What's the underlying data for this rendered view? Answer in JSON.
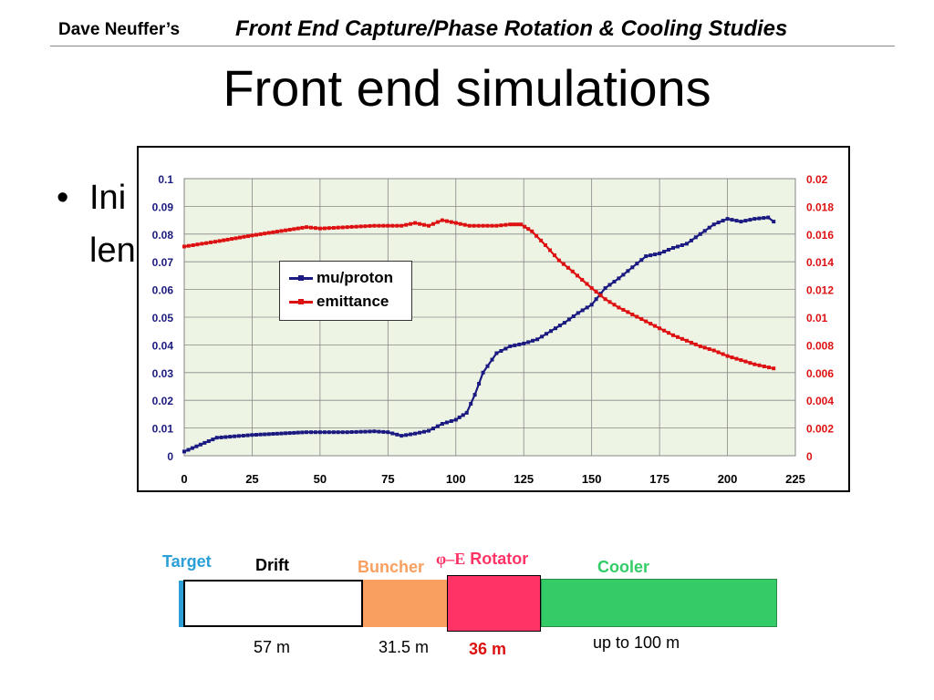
{
  "header": {
    "author": "Dave Neuffer’s",
    "subtitle": "Front End Capture/Phase Rotation & Cooling Studies"
  },
  "slide": {
    "title": "Front end simulations",
    "bullet_symbol": "•",
    "bullet_line1": "Ini",
    "bullet_line2": "len"
  },
  "legend": {
    "series1": "mu/proton",
    "series2": "emittance"
  },
  "chart_data": {
    "type": "line",
    "title": "",
    "xlabel": "",
    "ylabel": "",
    "xlim": [
      0,
      225
    ],
    "ylim": [
      0,
      0.1
    ],
    "y2lim": [
      0,
      0.02
    ],
    "x_ticks": [
      "0",
      "25",
      "50",
      "75",
      "100",
      "125",
      "150",
      "175",
      "200",
      "225"
    ],
    "y_ticks": [
      "0",
      "0.01",
      "0.02",
      "0.03",
      "0.04",
      "0.05",
      "0.06",
      "0.07",
      "0.08",
      "0.09",
      "0.1"
    ],
    "y2_ticks": [
      "0",
      "0.002",
      "0.004",
      "0.006",
      "0.008",
      "0.01",
      "0.012",
      "0.014",
      "0.016",
      "0.018",
      "0.02"
    ],
    "grid": true,
    "legend_position": "upper-middle-left",
    "series": [
      {
        "name": "mu/proton",
        "axis": "left",
        "color": "#1a1a80",
        "x": [
          0,
          12,
          25,
          45,
          55,
          60,
          70,
          75,
          80,
          85,
          90,
          95,
          100,
          104,
          107,
          110,
          115,
          120,
          125,
          130,
          135,
          140,
          145,
          150,
          155,
          160,
          165,
          170,
          175,
          180,
          185,
          190,
          195,
          200,
          205,
          210,
          215,
          217
        ],
        "y": [
          0.0015,
          0.0065,
          0.0075,
          0.0085,
          0.0085,
          0.0085,
          0.0088,
          0.0085,
          0.0072,
          0.008,
          0.009,
          0.0115,
          0.013,
          0.0155,
          0.022,
          0.03,
          0.037,
          0.0395,
          0.0405,
          0.042,
          0.045,
          0.048,
          0.0515,
          0.0545,
          0.0605,
          0.064,
          0.068,
          0.072,
          0.073,
          0.075,
          0.0765,
          0.08,
          0.0835,
          0.0855,
          0.0845,
          0.0855,
          0.086,
          0.0845
        ]
      },
      {
        "name": "emittance",
        "axis": "right",
        "color": "#dd1111",
        "x": [
          0,
          13,
          25,
          45,
          50,
          60,
          70,
          80,
          85,
          90,
          95,
          100,
          105,
          110,
          115,
          120,
          124,
          128,
          133,
          138,
          143,
          150,
          155,
          160,
          165,
          170,
          175,
          180,
          185,
          190,
          195,
          200,
          205,
          210,
          217
        ],
        "y": [
          0.0151,
          0.0155,
          0.0159,
          0.0165,
          0.0164,
          0.0165,
          0.0166,
          0.0166,
          0.0168,
          0.0166,
          0.017,
          0.0168,
          0.0166,
          0.0166,
          0.0166,
          0.0167,
          0.0167,
          0.0162,
          0.0152,
          0.0141,
          0.0133,
          0.0121,
          0.0113,
          0.0107,
          0.0102,
          0.0097,
          0.0092,
          0.0087,
          0.0083,
          0.0079,
          0.0076,
          0.0072,
          0.0069,
          0.0066,
          0.0063
        ]
      }
    ]
  },
  "diagram": {
    "target_label": "Target",
    "drift_label": "Drift",
    "buncher_label": "Buncher",
    "rotator_symbol": "φ–E",
    "rotator_label": "Rotator",
    "cooler_label": "Cooler",
    "drift_length": "57 m",
    "buncher_length": "31.5 m",
    "rotator_length": "36 m",
    "cooler_length": "up to 100 m",
    "colors": {
      "target": "#2a9fd8",
      "buncher": "#f9a060",
      "rotator": "#ff3366",
      "cooler": "#33cc66"
    }
  }
}
